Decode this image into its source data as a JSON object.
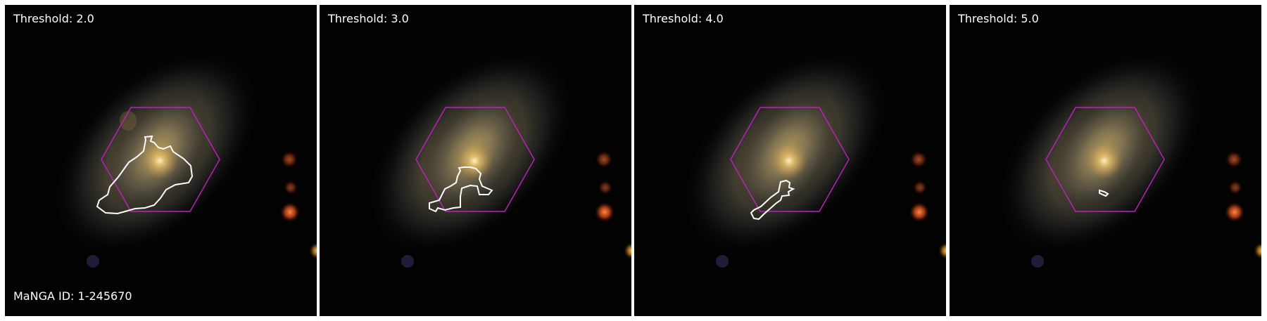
{
  "panels": [
    {
      "threshold_label": "Threshold: 2.0"
    },
    {
      "threshold_label": "Threshold: 3.0"
    },
    {
      "threshold_label": "Threshold: 4.0"
    },
    {
      "threshold_label": "Threshold: 5.0"
    }
  ],
  "manga_id_label": "MaNGA ID: 1-245670",
  "colors": {
    "hexagon": "#c020c0",
    "contour": "#ffffff",
    "background": "#000000",
    "text": "#ffffff"
  }
}
